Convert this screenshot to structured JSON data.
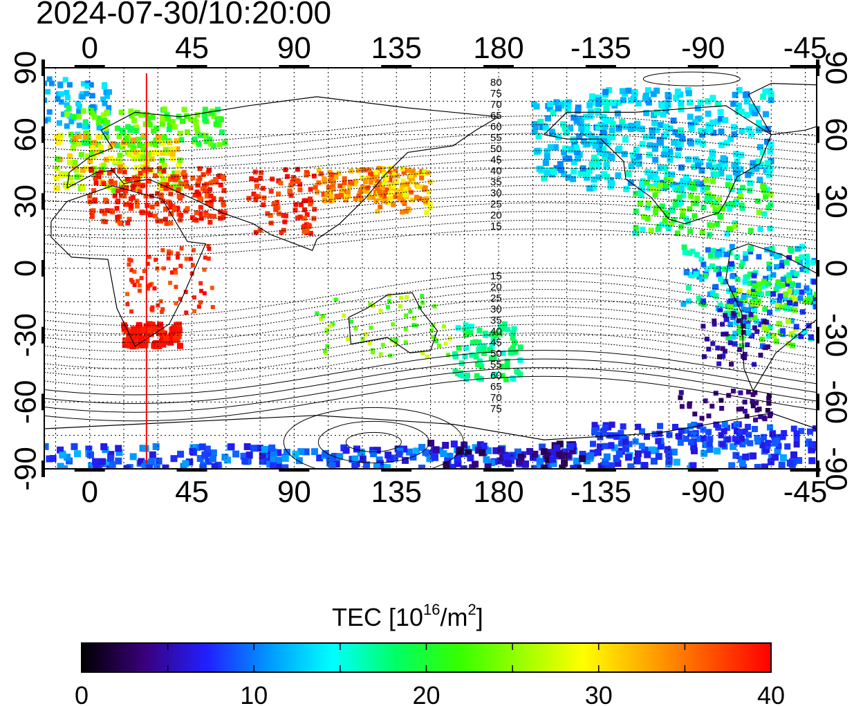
{
  "title": "2024-07-30/10:20:00",
  "map": {
    "x_ticks_bottom": [
      "0",
      "45",
      "90",
      "135",
      "180",
      "-135",
      "-90",
      "-45"
    ],
    "x_ticks_top": [
      "0",
      "45",
      "90",
      "135",
      "180",
      "-135",
      "-90",
      "-45"
    ],
    "y_ticks_left": [
      "90",
      "60",
      "30",
      "0",
      "-30",
      "-60",
      "-90"
    ],
    "y_ticks_right": [
      "90",
      "60",
      "30",
      "0",
      "-30",
      "-60",
      "-90"
    ],
    "lon_range": [
      -20,
      320
    ],
    "lat_range": [
      -90,
      90
    ],
    "subsolar_meridian_lon": 25,
    "contour_labels_north": [
      "80",
      "75",
      "70",
      "65",
      "60",
      "55",
      "50",
      "45",
      "40",
      "35",
      "30",
      "25",
      "20",
      "15"
    ],
    "contour_labels_south": [
      "15",
      "20",
      "25",
      "30",
      "35",
      "40",
      "45",
      "50",
      "55",
      "60",
      "65",
      "70",
      "75"
    ]
  },
  "colorbar": {
    "title_prefix": "TEC  [10",
    "title_exp": "16",
    "title_mid": "/m",
    "title_exp2": "2",
    "title_suffix": "]",
    "min": 0,
    "max": 40,
    "tick_labels": [
      "0",
      "10",
      "20",
      "30",
      "40"
    ],
    "colors": [
      "#000000",
      "#3a007a",
      "#2020ff",
      "#0099ff",
      "#00ffff",
      "#00ff66",
      "#33ff00",
      "#99ff00",
      "#ffff00",
      "#ffaa00",
      "#ff5500",
      "#ff0000"
    ]
  },
  "colors": {
    "meridian_line": "#ff0000",
    "frame": "#000000"
  }
}
